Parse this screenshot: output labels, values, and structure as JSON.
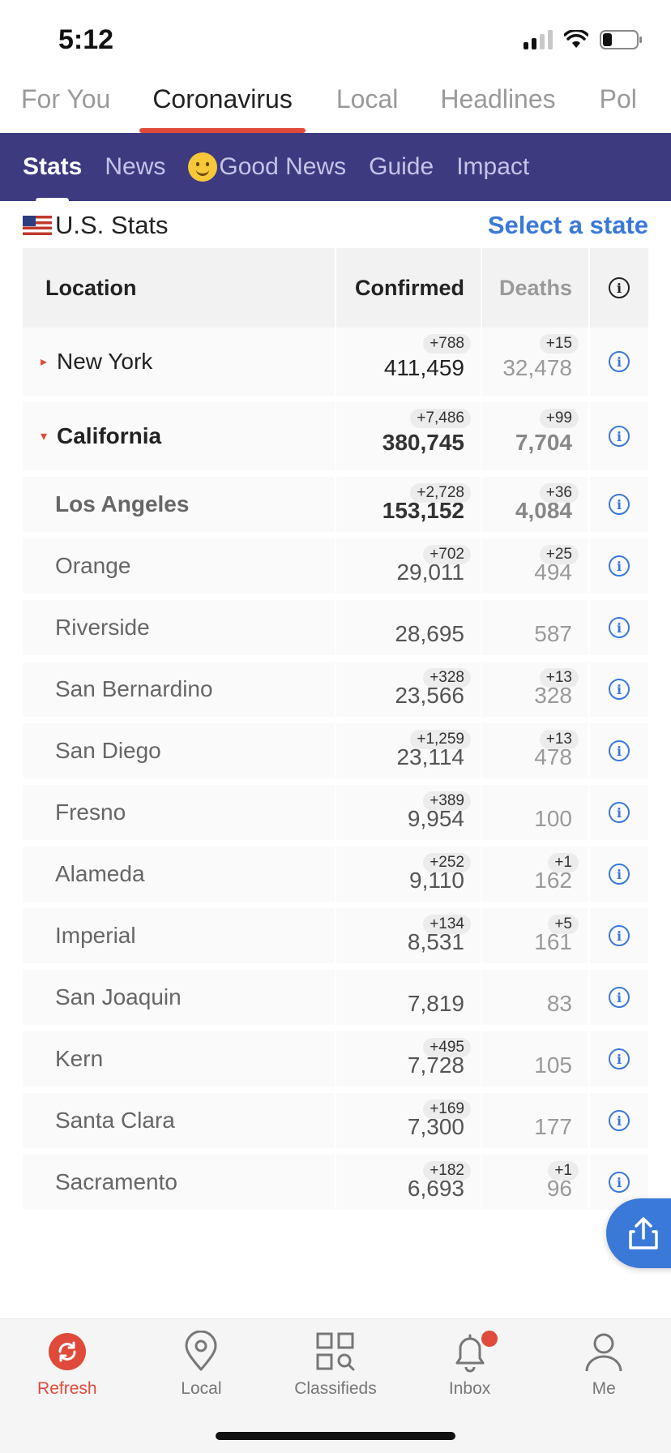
{
  "status_bar": {
    "time": "5:12"
  },
  "top_tabs": [
    "For You",
    "Coronavirus",
    "Local",
    "Headlines",
    "Pol"
  ],
  "sub_tabs": [
    "Stats",
    "News",
    "Good News",
    "Guide",
    "Impact"
  ],
  "stats_header": {
    "title": "U.S. Stats",
    "select_label": "Select a state"
  },
  "table": {
    "headers": {
      "location": "Location",
      "confirmed": "Confirmed",
      "deaths": "Deaths"
    },
    "rows": [
      {
        "name": "New York",
        "confirmed": "411,459",
        "confirmed_delta": "+788",
        "deaths": "32,478",
        "deaths_delta": "+15"
      },
      {
        "name": "California",
        "confirmed": "380,745",
        "confirmed_delta": "+7,486",
        "deaths": "7,704",
        "deaths_delta": "+99"
      },
      {
        "name": "Los Angeles",
        "confirmed": "153,152",
        "confirmed_delta": "+2,728",
        "deaths": "4,084",
        "deaths_delta": "+36"
      },
      {
        "name": "Orange",
        "confirmed": "29,011",
        "confirmed_delta": "+702",
        "deaths": "494",
        "deaths_delta": "+25"
      },
      {
        "name": "Riverside",
        "confirmed": "28,695",
        "confirmed_delta": "",
        "deaths": "587",
        "deaths_delta": ""
      },
      {
        "name": "San Bernardino",
        "confirmed": "23,566",
        "confirmed_delta": "+328",
        "deaths": "328",
        "deaths_delta": "+13"
      },
      {
        "name": "San Diego",
        "confirmed": "23,114",
        "confirmed_delta": "+1,259",
        "deaths": "478",
        "deaths_delta": "+13"
      },
      {
        "name": "Fresno",
        "confirmed": "9,954",
        "confirmed_delta": "+389",
        "deaths": "100",
        "deaths_delta": ""
      },
      {
        "name": "Alameda",
        "confirmed": "9,110",
        "confirmed_delta": "+252",
        "deaths": "162",
        "deaths_delta": "+1"
      },
      {
        "name": "Imperial",
        "confirmed": "8,531",
        "confirmed_delta": "+134",
        "deaths": "161",
        "deaths_delta": "+5"
      },
      {
        "name": "San Joaquin",
        "confirmed": "7,819",
        "confirmed_delta": "",
        "deaths": "83",
        "deaths_delta": ""
      },
      {
        "name": "Kern",
        "confirmed": "7,728",
        "confirmed_delta": "+495",
        "deaths": "105",
        "deaths_delta": ""
      },
      {
        "name": "Santa Clara",
        "confirmed": "7,300",
        "confirmed_delta": "+169",
        "deaths": "177",
        "deaths_delta": ""
      },
      {
        "name": "Sacramento",
        "confirmed": "6,693",
        "confirmed_delta": "+182",
        "deaths": "96",
        "deaths_delta": "+1"
      }
    ]
  },
  "bottom_nav": [
    "Refresh",
    "Local",
    "Classifieds",
    "Inbox",
    "Me"
  ],
  "colors": {
    "accent_red": "#e04a3a",
    "header_purple": "#3d3a80",
    "link_blue": "#3a79d8"
  },
  "icons": [
    "signal-icon",
    "wifi-icon",
    "battery-icon",
    "us-flag-icon",
    "smile-emoji-icon",
    "info-icon",
    "share-icon",
    "refresh-icon",
    "location-pin-icon",
    "classifieds-icon",
    "bell-icon",
    "person-icon"
  ]
}
